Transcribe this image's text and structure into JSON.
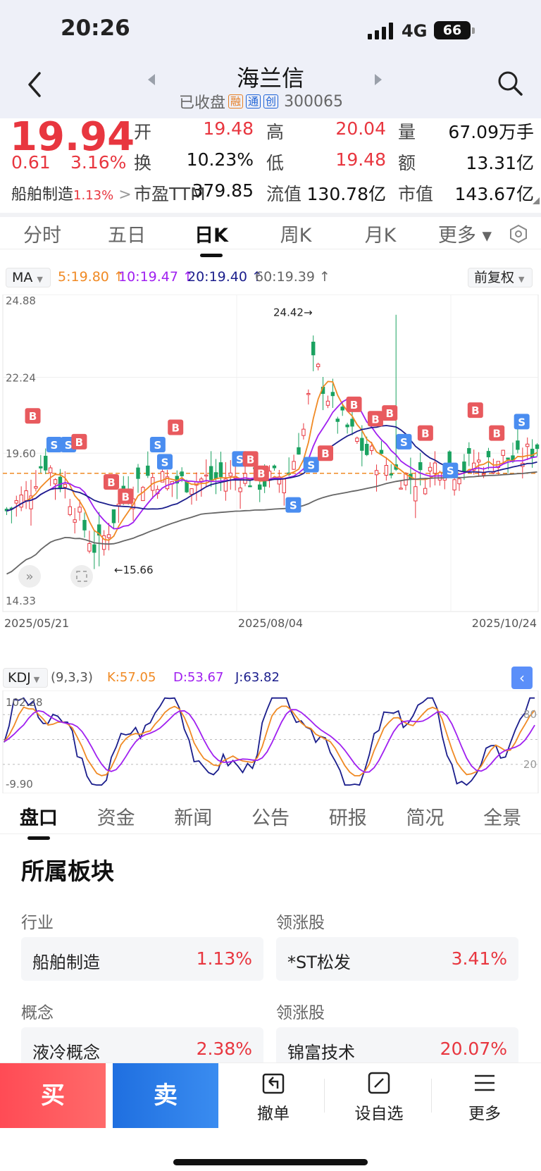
{
  "status": {
    "time": "20:26",
    "network": "4G",
    "battery": "66"
  },
  "header": {
    "title": "海兰信",
    "status": "已收盘",
    "tags": [
      "融",
      "通",
      "创"
    ],
    "code": "300065"
  },
  "quote": {
    "price": "19.94",
    "change": "0.61",
    "change_pct": "3.16%",
    "sector_name": "船舶制造",
    "sector_pct": "1.13%",
    "fields": [
      {
        "label": "开",
        "value": "19.48",
        "color": "red"
      },
      {
        "label": "高",
        "value": "20.04",
        "color": "red"
      },
      {
        "label": "量",
        "value": "67.09万手",
        "color": "black"
      },
      {
        "label": "换",
        "value": "10.23%",
        "color": "black"
      },
      {
        "label": "低",
        "value": "19.48",
        "color": "red"
      },
      {
        "label": "额",
        "value": "13.31亿",
        "color": "black"
      },
      {
        "label": "市盈TTM",
        "value": "379.85",
        "color": "black"
      },
      {
        "label": "流值",
        "value": "130.78亿",
        "color": "black"
      },
      {
        "label": "市值",
        "value": "143.67亿",
        "color": "black"
      }
    ]
  },
  "chart_tabs": [
    "分时",
    "五日",
    "日K",
    "周K",
    "月K",
    "更多 ▾"
  ],
  "chart_tab_active": 2,
  "ma_bar": {
    "selector": "MA",
    "ma5": "5:19.80 ↑",
    "ma10": "10:19.47 ↑",
    "ma20": "20:19.40 ↑",
    "ma60": "60:19.39 ↑",
    "adjust": "前复权",
    "colors": {
      "ma5": "#f08a24",
      "ma10": "#a020f0",
      "ma20": "#1b1e8c",
      "ma60": "#666666"
    }
  },
  "chart_data": [
    {
      "type": "candlestick",
      "y_ticks": [
        "24.88",
        "22.24",
        "19.60",
        "14.33"
      ],
      "ylim": [
        14.33,
        24.88
      ],
      "x_labels": [
        "2025/05/21",
        "2025/08/04",
        "2025/10/24"
      ],
      "annotations": {
        "high": "24.42→",
        "low": "←15.66"
      },
      "reference_price": 18.9,
      "series": [
        {
          "name": "MA5",
          "color": "#f08a24"
        },
        {
          "name": "MA10",
          "color": "#a020f0"
        },
        {
          "name": "MA20",
          "color": "#1b1e8c"
        },
        {
          "name": "MA60",
          "color": "#666666"
        }
      ]
    },
    {
      "type": "line",
      "indicator": "KDJ",
      "params": "(9,3,3)",
      "k_label": "K:57.05",
      "d_label": "D:53.67",
      "j_label": "J:63.82",
      "y_ticks": [
        "102.28",
        "-9.90"
      ],
      "right_ticks": [
        "80",
        "20"
      ],
      "ylim": [
        -9.9,
        102.28
      ]
    }
  ],
  "info_tabs": [
    "盘口",
    "资金",
    "新闻",
    "公告",
    "研报",
    "简况",
    "全景"
  ],
  "info_tab_active": 0,
  "section_title": "所属板块",
  "blocks": [
    {
      "left_label": "行业",
      "left_name": "船舶制造",
      "left_pct": "1.13%",
      "right_label": "领涨股",
      "right_name": "*ST松发",
      "right_pct": "3.41%"
    },
    {
      "left_label": "概念",
      "left_name": "液冷概念",
      "left_pct": "2.38%",
      "right_label": "领涨股",
      "right_name": "锦富技术",
      "right_pct": "20.07%"
    }
  ],
  "bottom": {
    "buy": "买",
    "sell": "卖",
    "cancel": "撤单",
    "watch": "设自选",
    "more": "更多"
  }
}
